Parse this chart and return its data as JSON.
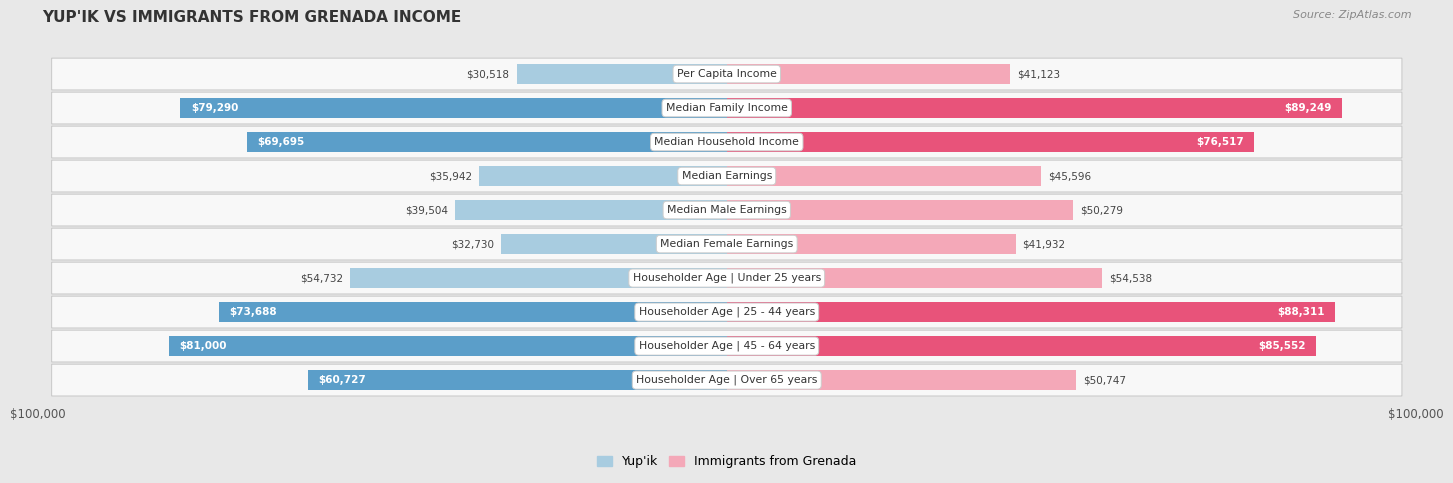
{
  "title": "YUP'IK VS IMMIGRANTS FROM GRENADA INCOME",
  "source": "Source: ZipAtlas.com",
  "categories": [
    "Per Capita Income",
    "Median Family Income",
    "Median Household Income",
    "Median Earnings",
    "Median Male Earnings",
    "Median Female Earnings",
    "Householder Age | Under 25 years",
    "Householder Age | 25 - 44 years",
    "Householder Age | 45 - 64 years",
    "Householder Age | Over 65 years"
  ],
  "yupik_values": [
    30518,
    79290,
    69695,
    35942,
    39504,
    32730,
    54732,
    73688,
    81000,
    60727
  ],
  "grenada_values": [
    41123,
    89249,
    76517,
    45596,
    50279,
    41932,
    54538,
    88311,
    85552,
    50747
  ],
  "yupik_labels": [
    "$30,518",
    "$79,290",
    "$69,695",
    "$35,942",
    "$39,504",
    "$32,730",
    "$54,732",
    "$73,688",
    "$81,000",
    "$60,727"
  ],
  "grenada_labels": [
    "$41,123",
    "$89,249",
    "$76,517",
    "$45,596",
    "$50,279",
    "$41,932",
    "$54,538",
    "$88,311",
    "$85,552",
    "$50,747"
  ],
  "max_value": 100000,
  "yupik_color_light": "#a8cce0",
  "yupik_color_dark": "#5b9ec9",
  "grenada_color_light": "#f4a8b8",
  "grenada_color_dark": "#e8537a",
  "color_threshold": 55000,
  "bg_color": "#e8e8e8",
  "row_bg": "#f8f8f8",
  "legend_yupik": "Yup'ik",
  "legend_grenada": "Immigrants from Grenada",
  "x_tick_left": "$100,000",
  "x_tick_right": "$100,000"
}
